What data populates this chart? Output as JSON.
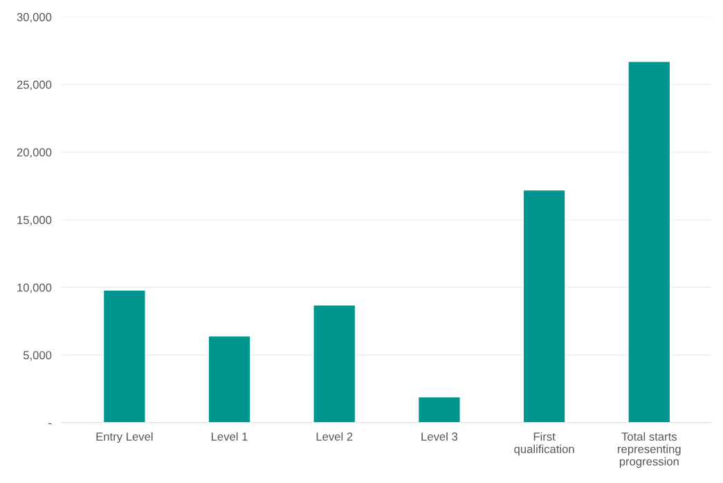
{
  "chart_data": {
    "type": "bar",
    "categories": [
      "Entry Level",
      "Level 1",
      "Level 2",
      "Level 3",
      "First\nqualification",
      "Total starts\nrepresenting\nprogression"
    ],
    "values": [
      9800,
      6400,
      8700,
      1900,
      17200,
      26700
    ],
    "color": "#00968f",
    "ylim": [
      0,
      30000
    ],
    "yticks": [
      {
        "value": 0,
        "label": "-"
      },
      {
        "value": 5000,
        "label": "5,000"
      },
      {
        "value": 10000,
        "label": "10,000"
      },
      {
        "value": 15000,
        "label": "15,000"
      },
      {
        "value": 20000,
        "label": "20,000"
      },
      {
        "value": 25000,
        "label": "25,000"
      },
      {
        "value": 30000,
        "label": "30,000"
      }
    ],
    "grid": "y",
    "legend": false
  }
}
